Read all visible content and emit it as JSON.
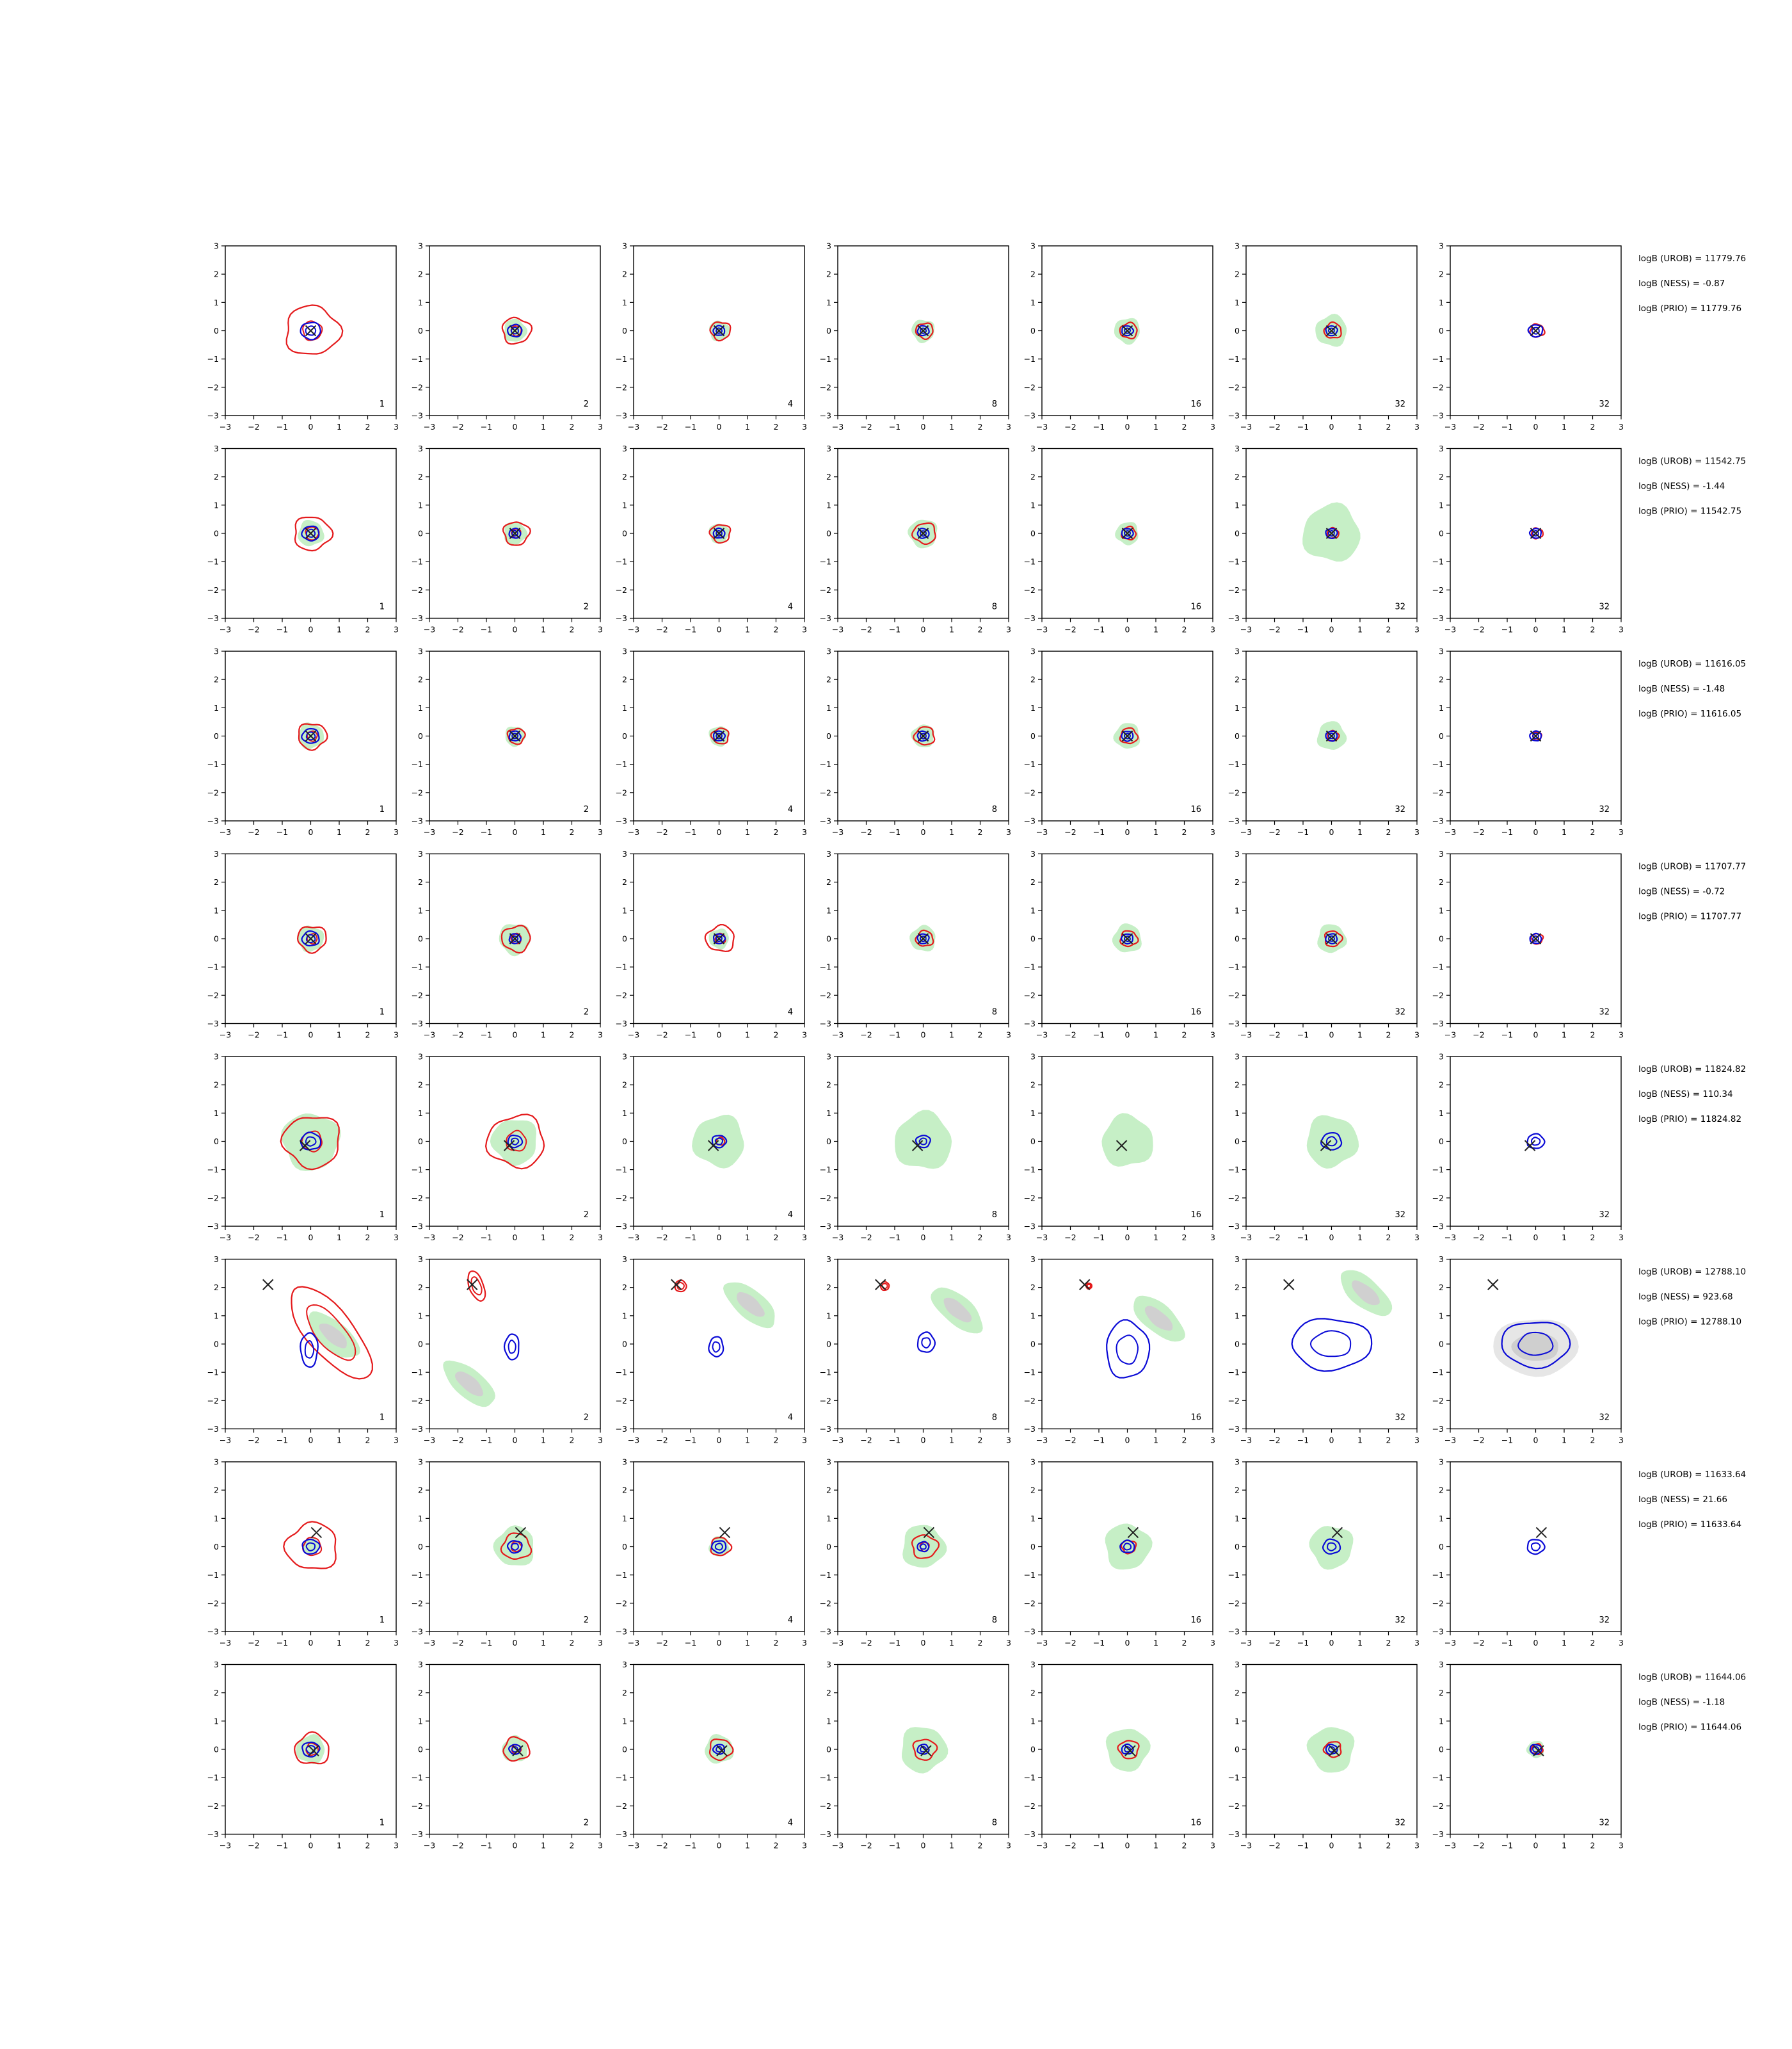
{
  "chart_data": {
    "type": "contour-grid",
    "rows": 8,
    "cols": 7,
    "xlim": [
      -3,
      3
    ],
    "ylim": [
      -3,
      3
    ],
    "ticks": [
      -3,
      -2,
      -1,
      0,
      1,
      2,
      3
    ],
    "tick_labels": [
      "−3",
      "−2",
      "−1",
      "0",
      "1",
      "2",
      "3"
    ],
    "panel_labels": [
      "1",
      "2",
      "4",
      "8",
      "16",
      "32",
      "32"
    ],
    "colors": {
      "red": "#e41a1c",
      "blue": "#0a0ad6",
      "green_fill": "#c6efc6",
      "gray_fill": "#d0d0d0",
      "marker": "#222222",
      "axis": "#000000"
    },
    "row_stats": [
      {
        "urob": "logB (UROB) = 11779.76",
        "ness": "logB (NESS) = -0.87",
        "prio": "logB (PRIO) = 11779.76"
      },
      {
        "urob": "logB (UROB) = 11542.75",
        "ness": "logB (NESS) = -1.44",
        "prio": "logB (PRIO) = 11542.75"
      },
      {
        "urob": "logB (UROB) = 11616.05",
        "ness": "logB (NESS) = -1.48",
        "prio": "logB (PRIO) = 11616.05"
      },
      {
        "urob": "logB (UROB) = 11707.77",
        "ness": "logB (NESS) = -0.72",
        "prio": "logB (PRIO) = 11707.77"
      },
      {
        "urob": "logB (UROB) = 11824.82",
        "ness": "logB (NESS) = 110.34",
        "prio": "logB (PRIO) = 11824.82"
      },
      {
        "urob": "logB (UROB) = 12788.10",
        "ness": "logB (NESS) = 923.68",
        "prio": "logB (PRIO) = 12788.10"
      },
      {
        "urob": "logB (UROB) = 11633.64",
        "ness": "logB (NESS) = 21.66",
        "prio": "logB (PRIO) = 11633.64"
      },
      {
        "urob": "logB (UROB) = 11644.06",
        "ness": "logB (NESS) = -1.18",
        "prio": "logB (PRIO) = 11644.06"
      }
    ],
    "markers": [
      [
        0,
        0
      ],
      [
        0,
        0
      ],
      [
        0,
        0
      ],
      [
        0,
        0
      ],
      [
        -0.2,
        -0.15
      ],
      [
        -1.5,
        2.1
      ],
      [
        0.2,
        0.5
      ],
      [
        0.1,
        -0.05
      ]
    ],
    "green_radius": [
      [
        0,
        0.4,
        0.35,
        0.4,
        0.45,
        0.55,
        0
      ],
      [
        0.45,
        0.4,
        0.35,
        0.5,
        0.4,
        1.0,
        0
      ],
      [
        0.45,
        0.35,
        0.35,
        0.4,
        0.45,
        0.5,
        0
      ],
      [
        0.45,
        0.55,
        0.35,
        0.45,
        0.5,
        0.5,
        0
      ],
      [
        1.0,
        0.8,
        0.9,
        1.0,
        0.9,
        0.9,
        0
      ],
      [
        0,
        0,
        0,
        0,
        0,
        0,
        0
      ],
      [
        0.3,
        0.7,
        0.35,
        0.75,
        0.8,
        0.75,
        0
      ],
      [
        0.5,
        0.45,
        0.5,
        0.8,
        0.75,
        0.8,
        0.3
      ]
    ],
    "red_radius": [
      [
        0.95,
        0.5,
        0.35,
        0.3,
        0.3,
        0.3,
        0.25
      ],
      [
        0.65,
        0.45,
        0.35,
        0.4,
        0.25,
        0.2,
        0.2
      ],
      [
        0.5,
        0.3,
        0.3,
        0.35,
        0.3,
        0.2,
        0.15
      ],
      [
        0.5,
        0.5,
        0.5,
        0.3,
        0.3,
        0.3,
        0.2
      ],
      [
        1.0,
        1.0,
        0.15,
        0,
        0,
        0,
        0
      ],
      [
        0,
        0,
        0,
        0,
        0,
        0,
        0
      ],
      [
        0.9,
        0.5,
        0.35,
        0.45,
        0.25,
        0,
        0
      ],
      [
        0.6,
        0.45,
        0.4,
        0.4,
        0.35,
        0.3,
        0.2
      ]
    ],
    "blue_radius": [
      [
        0.35,
        0.25,
        0.2,
        0.2,
        0.2,
        0.2,
        0.25
      ],
      [
        0.3,
        0.2,
        0.2,
        0.2,
        0.2,
        0.2,
        0.2
      ],
      [
        0.3,
        0.2,
        0.2,
        0.2,
        0.2,
        0.2,
        0.2
      ],
      [
        0.3,
        0.2,
        0.2,
        0.2,
        0.2,
        0.2,
        0.2
      ],
      [
        0.35,
        0.25,
        0.25,
        0.25,
        0,
        0.35,
        0.3
      ],
      [
        0,
        0,
        0,
        0,
        0,
        0,
        0
      ],
      [
        0.3,
        0.25,
        0.25,
        0.2,
        0.25,
        0.3,
        0.3
      ],
      [
        0.3,
        0.2,
        0.2,
        0.2,
        0.2,
        0.2,
        0.2
      ]
    ],
    "special_row_6": {
      "green_centers": [
        [
          0.8,
          0.3
        ],
        [
          -1.6,
          -1.4
        ],
        [
          1.1,
          1.4
        ],
        [
          1.2,
          1.2
        ],
        [
          1.1,
          0.9
        ],
        [
          1.2,
          1.8
        ],
        [
          0,
          -0.1
        ]
      ],
      "blue_centers": [
        [
          -0.05,
          -0.2
        ],
        [
          -0.1,
          -0.1
        ],
        [
          -0.1,
          -0.1
        ],
        [
          0.1,
          0.05
        ],
        [
          0,
          -0.2
        ],
        [
          0,
          0
        ],
        [
          0,
          0
        ]
      ],
      "blue_outer": [
        [
          0.3,
          0.6
        ],
        [
          0.25,
          0.45
        ],
        [
          0.25,
          0.35
        ],
        [
          0.3,
          0.35
        ],
        [
          0.75,
          1.0
        ],
        [
          1.4,
          0.9
        ],
        [
          1.2,
          0.8
        ]
      ],
      "red_ellipse": [
        [
          0.8,
          2.0
        ],
        [
          0.25,
          0.55
        ],
        [
          0.2,
          0.2
        ],
        [
          0.15,
          0.15
        ],
        [
          0.1,
          0.1
        ],
        [
          0,
          0
        ],
        [
          0,
          0
        ]
      ]
    }
  }
}
